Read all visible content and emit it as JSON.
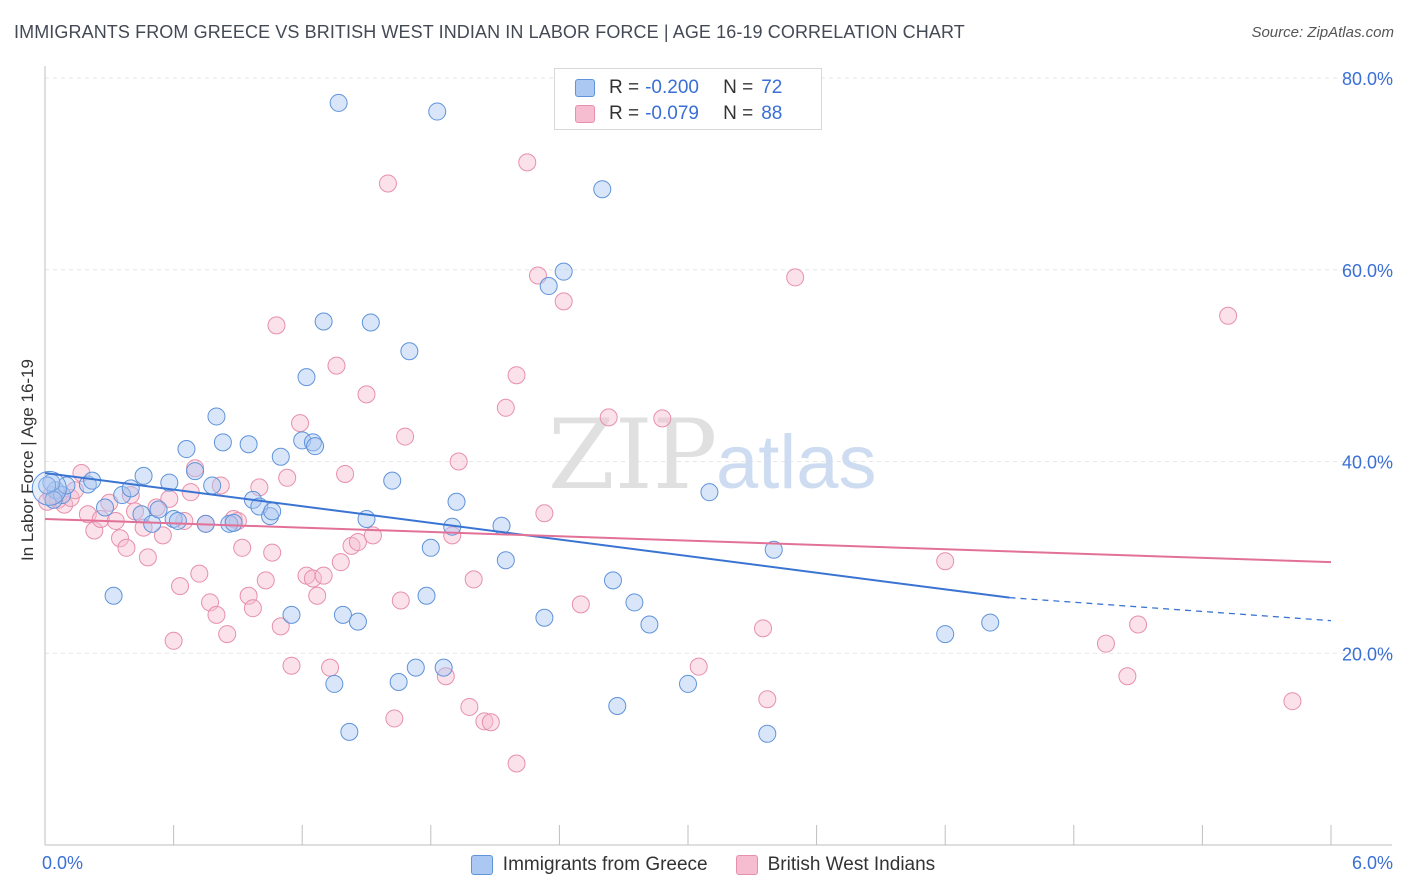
{
  "title": "IMMIGRANTS FROM GREECE VS BRITISH WEST INDIAN IN LABOR FORCE | AGE 16-19 CORRELATION CHART",
  "source": "Source: ZipAtlas.com",
  "watermark": {
    "zip": "ZIP",
    "atlas": "atlas"
  },
  "legend": {
    "rows": [
      {
        "r_label": "R =",
        "r_value": "-0.200",
        "n_label": "N =",
        "n_value": "72"
      },
      {
        "r_label": "R =",
        "r_value": "-0.079",
        "n_label": "N =",
        "n_value": "88"
      }
    ]
  },
  "chart_data": {
    "type": "scatter",
    "title": "IMMIGRANTS FROM GREECE VS BRITISH WEST INDIAN IN LABOR FORCE | AGE 16-19 CORRELATION CHART",
    "xlabel": "",
    "ylabel": "In Labor Force | Age 16-19",
    "xlim": [
      0,
      6
    ],
    "ylim": [
      0,
      80
    ],
    "x_tick_labels": [
      "0.0%",
      "6.0%"
    ],
    "y_ticks": [
      20,
      40,
      60,
      80
    ],
    "y_tick_labels": [
      "20.0%",
      "40.0%",
      "60.0%",
      "80.0%"
    ],
    "grid": true,
    "colors": {
      "greece_fill": "#aac8f2",
      "greece_edge": "#5f93da",
      "greece_line": "#3a74d2",
      "bwi_fill": "#f6bccf",
      "bwi_edge": "#e790ac",
      "bwi_line": "#e27198",
      "axis_label": "#3a6fd6",
      "grid": "#e6e6e6"
    },
    "series": [
      {
        "name": "Immigrants from Greece",
        "r": -0.2,
        "n": 72,
        "trend": {
          "x0": 0.0,
          "y0": 38.8,
          "x1": 4.5,
          "y1": 25.8,
          "dash_to_x": 6.0,
          "dash_to_y": 23.4
        },
        "points": [
          [
            0.05,
            37.0
          ],
          [
            0.08,
            36.5
          ],
          [
            0.1,
            37.5
          ],
          [
            0.2,
            37.6
          ],
          [
            0.22,
            38.0
          ],
          [
            0.28,
            35.2
          ],
          [
            0.32,
            26.0
          ],
          [
            0.36,
            36.5
          ],
          [
            0.4,
            37.2
          ],
          [
            0.45,
            34.5
          ],
          [
            0.46,
            38.5
          ],
          [
            0.5,
            33.5
          ],
          [
            0.53,
            35.0
          ],
          [
            0.58,
            37.8
          ],
          [
            0.6,
            34.0
          ],
          [
            0.62,
            33.8
          ],
          [
            0.66,
            41.3
          ],
          [
            0.7,
            39.0
          ],
          [
            0.75,
            33.5
          ],
          [
            0.78,
            37.5
          ],
          [
            0.8,
            44.7
          ],
          [
            0.83,
            42.0
          ],
          [
            0.86,
            33.5
          ],
          [
            0.88,
            33.6
          ],
          [
            0.95,
            41.8
          ],
          [
            0.97,
            36.0
          ],
          [
            1.0,
            35.3
          ],
          [
            1.05,
            34.3
          ],
          [
            1.06,
            34.8
          ],
          [
            1.1,
            40.5
          ],
          [
            1.15,
            24.0
          ],
          [
            1.2,
            42.2
          ],
          [
            1.22,
            48.8
          ],
          [
            1.25,
            42.0
          ],
          [
            1.26,
            41.6
          ],
          [
            1.3,
            54.6
          ],
          [
            1.35,
            16.8
          ],
          [
            1.37,
            77.4
          ],
          [
            1.39,
            24.0
          ],
          [
            1.42,
            11.8
          ],
          [
            1.46,
            23.3
          ],
          [
            1.5,
            34.0
          ],
          [
            1.52,
            54.5
          ],
          [
            1.62,
            38.0
          ],
          [
            1.65,
            17.0
          ],
          [
            1.7,
            51.5
          ],
          [
            1.73,
            18.5
          ],
          [
            1.78,
            26.0
          ],
          [
            1.8,
            31.0
          ],
          [
            1.83,
            76.5
          ],
          [
            1.86,
            18.5
          ],
          [
            1.9,
            33.2
          ],
          [
            1.92,
            35.8
          ],
          [
            2.13,
            33.3
          ],
          [
            2.15,
            29.7
          ],
          [
            2.33,
            23.7
          ],
          [
            2.35,
            58.3
          ],
          [
            2.42,
            59.8
          ],
          [
            2.6,
            68.4
          ],
          [
            2.67,
            14.5
          ],
          [
            2.65,
            27.6
          ],
          [
            2.75,
            25.3
          ],
          [
            2.82,
            23.0
          ],
          [
            3.0,
            16.8
          ],
          [
            3.1,
            36.8
          ],
          [
            3.37,
            11.6
          ],
          [
            3.4,
            30.8
          ],
          [
            4.2,
            22.0
          ],
          [
            4.41,
            23.2
          ],
          [
            0.03,
            37.8
          ],
          [
            0.01,
            37.5
          ],
          [
            0.04,
            36.0
          ]
        ]
      },
      {
        "name": "British West Indians",
        "r": -0.079,
        "n": 88,
        "trend": {
          "x0": 0.0,
          "y0": 34.0,
          "x1": 6.0,
          "y1": 29.5
        },
        "points": [
          [
            0.03,
            36.5
          ],
          [
            0.06,
            36.0
          ],
          [
            0.09,
            35.5
          ],
          [
            0.12,
            36.2
          ],
          [
            0.14,
            37.0
          ],
          [
            0.17,
            38.8
          ],
          [
            0.2,
            34.5
          ],
          [
            0.23,
            32.8
          ],
          [
            0.26,
            34.0
          ],
          [
            0.3,
            35.7
          ],
          [
            0.33,
            33.8
          ],
          [
            0.35,
            32.0
          ],
          [
            0.38,
            31.0
          ],
          [
            0.4,
            36.5
          ],
          [
            0.42,
            34.8
          ],
          [
            0.46,
            33.1
          ],
          [
            0.48,
            30.0
          ],
          [
            0.52,
            35.2
          ],
          [
            0.55,
            32.3
          ],
          [
            0.58,
            36.1
          ],
          [
            0.6,
            21.3
          ],
          [
            0.63,
            27.0
          ],
          [
            0.65,
            33.8
          ],
          [
            0.68,
            36.8
          ],
          [
            0.7,
            39.3
          ],
          [
            0.72,
            28.3
          ],
          [
            0.75,
            33.5
          ],
          [
            0.77,
            25.3
          ],
          [
            0.8,
            24.0
          ],
          [
            0.82,
            37.5
          ],
          [
            0.85,
            22.0
          ],
          [
            0.88,
            34.0
          ],
          [
            0.9,
            33.8
          ],
          [
            0.92,
            31.0
          ],
          [
            0.95,
            26.0
          ],
          [
            0.97,
            24.7
          ],
          [
            1.0,
            37.3
          ],
          [
            1.03,
            27.6
          ],
          [
            1.06,
            30.5
          ],
          [
            1.08,
            54.2
          ],
          [
            1.1,
            22.8
          ],
          [
            1.13,
            38.3
          ],
          [
            1.15,
            18.7
          ],
          [
            1.19,
            44.0
          ],
          [
            1.22,
            28.1
          ],
          [
            1.25,
            27.8
          ],
          [
            1.27,
            26.0
          ],
          [
            1.3,
            28.1
          ],
          [
            1.33,
            18.5
          ],
          [
            1.36,
            50.0
          ],
          [
            1.38,
            29.5
          ],
          [
            1.4,
            38.7
          ],
          [
            1.43,
            31.2
          ],
          [
            1.46,
            31.6
          ],
          [
            1.5,
            47.0
          ],
          [
            1.53,
            32.3
          ],
          [
            1.6,
            69.0
          ],
          [
            1.63,
            13.2
          ],
          [
            1.66,
            25.5
          ],
          [
            1.68,
            42.6
          ],
          [
            1.87,
            17.6
          ],
          [
            1.9,
            32.3
          ],
          [
            1.93,
            40.0
          ],
          [
            1.98,
            14.4
          ],
          [
            2.0,
            27.7
          ],
          [
            2.05,
            12.9
          ],
          [
            2.08,
            12.8
          ],
          [
            2.15,
            45.6
          ],
          [
            2.2,
            8.5
          ],
          [
            2.2,
            49.0
          ],
          [
            2.25,
            71.2
          ],
          [
            2.3,
            59.4
          ],
          [
            2.33,
            34.6
          ],
          [
            2.42,
            56.7
          ],
          [
            2.5,
            25.1
          ],
          [
            2.63,
            44.6
          ],
          [
            2.88,
            44.5
          ],
          [
            3.05,
            18.6
          ],
          [
            3.35,
            22.6
          ],
          [
            3.37,
            15.2
          ],
          [
            3.5,
            59.2
          ],
          [
            4.2,
            29.6
          ],
          [
            4.95,
            21.0
          ],
          [
            5.05,
            17.6
          ],
          [
            5.1,
            23.0
          ],
          [
            5.52,
            55.2
          ],
          [
            5.82,
            15.0
          ],
          [
            0.01,
            35.8
          ]
        ]
      }
    ]
  }
}
